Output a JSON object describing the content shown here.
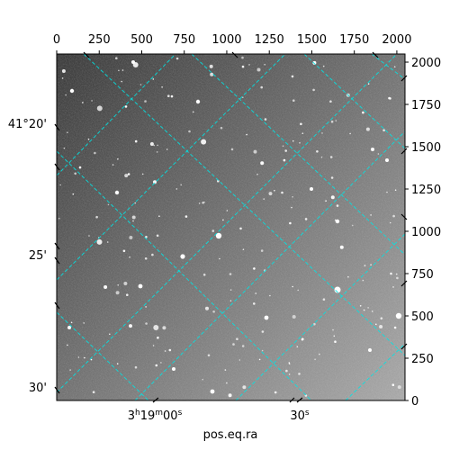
{
  "chart_data": {
    "type": "image",
    "title": "",
    "xlabel": "pos.eq.ra",
    "ylabel": "",
    "pixel_axes": {
      "x_ticks": [
        0,
        250,
        500,
        750,
        1000,
        1250,
        1500,
        1750,
        2000
      ],
      "y_ticks": [
        0,
        250,
        500,
        750,
        1000,
        1250,
        1500,
        1750,
        2000
      ],
      "xlim": [
        0,
        2048
      ],
      "ylim": [
        0,
        2048
      ]
    },
    "world_axes": {
      "ra_tick_labels": [
        "3h19m00s",
        "30s"
      ],
      "ra_labels_display": [
        {
          "main": "3",
          "sup1": "h",
          "mid": "19",
          "sup2": "m",
          "tail": "00",
          "sup3": "s"
        },
        {
          "main": "",
          "sup1": "",
          "mid": "",
          "sup2": "",
          "tail": "30",
          "sup3": "s"
        }
      ],
      "dec_tick_labels": [
        "41°20'",
        "25'",
        "30'"
      ]
    },
    "colors": {
      "grid": "#00e5e5",
      "image_dark": "#2b2b2b",
      "image_light": "#a9a9a9"
    },
    "grid_style": "dashed"
  }
}
